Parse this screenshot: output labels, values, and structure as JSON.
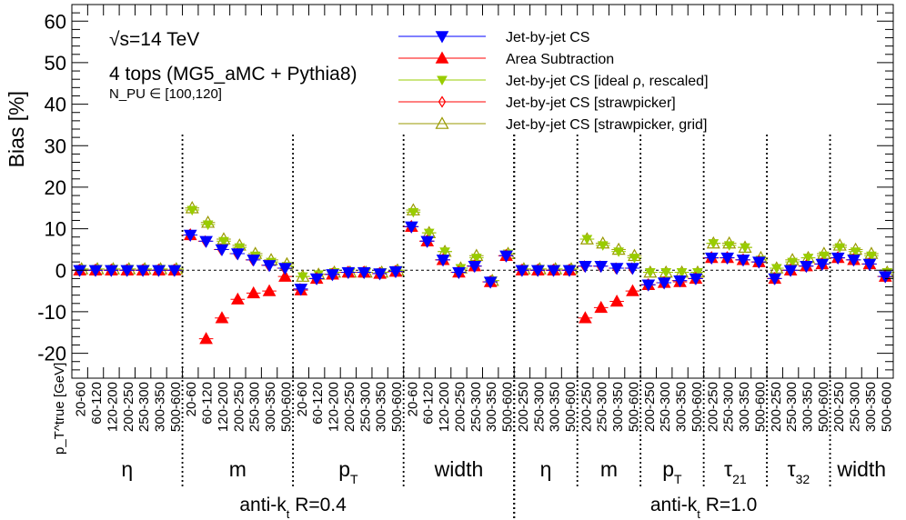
{
  "chart_data": {
    "type": "scatter",
    "ylabel": "Bias [%]",
    "ylim": [
      -26,
      64
    ],
    "yticks": [
      -20,
      -10,
      0,
      10,
      20,
      30,
      40,
      50,
      60
    ],
    "tick_label_prefix": "p_T^true [GeV]",
    "annotations": {
      "energy": "√s=14 TeV",
      "process": "4 tops (MG5_aMC + Pythia8)",
      "pileup": "N_PU ∈ [100,120]"
    },
    "legend_position": "top-center",
    "legend": [
      {
        "key": "cs",
        "label": "Jet-by-jet CS",
        "color": "#0000ff",
        "marker": "triangle-down-filled"
      },
      {
        "key": "area",
        "label": "Area Subtraction",
        "color": "#ff0000",
        "marker": "triangle-up-filled"
      },
      {
        "key": "ideal",
        "label": "Jet-by-jet CS [ideal   ρ, rescaled]",
        "color": "#99cc00",
        "marker": "triangle-down-filled-small"
      },
      {
        "key": "straw",
        "label": "Jet-by-jet CS [strawpicker]",
        "color": "#ff0000",
        "marker": "diamond-open"
      },
      {
        "key": "grid",
        "label": "Jet-by-jet CS [strawpicker, grid]",
        "color": "#999900",
        "marker": "triangle-up-open"
      }
    ],
    "x_bins": [
      "20-60",
      "60-120",
      "120-200",
      "200-250",
      "250-300",
      "300-350",
      "500-600",
      "20-60",
      "60-120",
      "120-200",
      "200-250",
      "250-300",
      "300-350",
      "500-600",
      "20-60",
      "60-120",
      "120-200",
      "200-250",
      "250-300",
      "300-350",
      "500-600",
      "20-60",
      "60-120",
      "120-200",
      "200-250",
      "250-300",
      "300-350",
      "500-600",
      "200-250",
      "250-300",
      "300-350",
      "500-600",
      "200-250",
      "250-300",
      "300-350",
      "500-600",
      "200-250",
      "250-300",
      "300-350",
      "500-600",
      "200-250",
      "250-300",
      "300-350",
      "500-600",
      "200-250",
      "250-300",
      "300-350",
      "500-600",
      "200-250",
      "250-300",
      "300-350",
      "500-600"
    ],
    "groups": [
      {
        "label": "η",
        "start": 0,
        "end": 7
      },
      {
        "label": "m",
        "start": 7,
        "end": 14
      },
      {
        "label": "p_T",
        "start": 14,
        "end": 21
      },
      {
        "label": "width",
        "start": 21,
        "end": 28
      },
      {
        "label": "η",
        "start": 28,
        "end": 32
      },
      {
        "label": "m",
        "start": 32,
        "end": 36
      },
      {
        "label": "p_T",
        "start": 36,
        "end": 40
      },
      {
        "label": "τ_21",
        "start": 40,
        "end": 44
      },
      {
        "label": "τ_32",
        "start": 44,
        "end": 48
      },
      {
        "label": "width",
        "start": 48,
        "end": 52
      }
    ],
    "jet_groups": [
      {
        "label": "anti-k_t R=0.4",
        "start": 0,
        "end": 28
      },
      {
        "label": "anti-k_t R=1.0",
        "start": 28,
        "end": 52
      }
    ],
    "series": [
      {
        "key": "cs",
        "values": [
          0,
          0,
          0,
          0,
          0,
          0,
          0,
          8.5,
          7,
          5,
          4,
          2.5,
          1.2,
          0.5,
          -4.5,
          -2,
          -1,
          -0.5,
          -0.5,
          -0.8,
          -0.3,
          10.5,
          7,
          2.5,
          -0.5,
          1,
          -2.8,
          3.5,
          0,
          0,
          0,
          0,
          1,
          1,
          0.5,
          0.5,
          -3.5,
          -3,
          -2.5,
          -2,
          3,
          3,
          2.5,
          2,
          -2,
          0,
          1,
          1.5,
          3,
          2.5,
          1.5,
          -1.5
        ]
      },
      {
        "key": "area",
        "values": [
          0,
          0,
          0,
          0,
          0,
          0,
          0,
          8.5,
          -16.5,
          -11.5,
          -7,
          -5.5,
          -5,
          -1.5,
          -4.8,
          -2,
          -1,
          -0.5,
          -0.5,
          -0.8,
          -0.3,
          10.5,
          7,
          2.5,
          -0.5,
          1,
          -2.8,
          3.5,
          0,
          0,
          0,
          0,
          -11.5,
          -9,
          -7.5,
          -5,
          -3.5,
          -3,
          -2.8,
          -2,
          3,
          3,
          2.5,
          2,
          -2,
          0,
          1,
          1.5,
          3,
          2.5,
          1.5,
          -1.5
        ]
      },
      {
        "key": "ideal",
        "values": [
          0.3,
          0.3,
          0.3,
          0.3,
          0.3,
          0.3,
          0.3,
          14.5,
          11,
          7,
          5.5,
          3.5,
          2,
          1,
          -1.5,
          -1,
          -0.5,
          -0.5,
          -0.5,
          -0.5,
          0,
          14,
          9,
          4.5,
          0.5,
          3,
          -2.5,
          4,
          0.3,
          0.3,
          0.3,
          0.3,
          7.5,
          6,
          4.5,
          3,
          -0.5,
          -0.5,
          -0.5,
          -0.5,
          6.5,
          6,
          5.5,
          2.5,
          0.5,
          2,
          3,
          3.5,
          5.5,
          4.5,
          3.5,
          -0.5
        ]
      },
      {
        "key": "straw",
        "values": [
          0,
          0,
          0,
          0,
          0,
          0,
          0,
          8.5,
          7,
          5,
          4,
          2.5,
          1.2,
          0.5,
          -4.5,
          -2,
          -1,
          -0.5,
          -0.5,
          -0.8,
          -0.3,
          10.5,
          7,
          2.5,
          -0.5,
          1,
          -2.8,
          3.5,
          0,
          0,
          0,
          0,
          1,
          1,
          0.5,
          0.5,
          -3.5,
          -3,
          -2.5,
          -2,
          3,
          3,
          2.5,
          2,
          -2,
          0,
          1,
          1.5,
          3,
          2.5,
          1.5,
          -1.5
        ]
      },
      {
        "key": "grid",
        "values": [
          0.3,
          0.3,
          0.3,
          0.3,
          0.3,
          0.3,
          0.3,
          15,
          11.5,
          7.5,
          6,
          4,
          2.5,
          1.5,
          -1.5,
          -1,
          -0.5,
          -0.5,
          -0.5,
          -0.5,
          0,
          14.5,
          9,
          4.5,
          0.5,
          3.5,
          -2.5,
          4,
          0.3,
          0.3,
          0.3,
          0.3,
          7.5,
          6.5,
          5,
          3.5,
          -0.5,
          -0.5,
          -0.5,
          -0.5,
          6.5,
          6.5,
          5.5,
          3,
          0.5,
          2.5,
          3,
          4,
          6,
          5,
          4,
          -0.5
        ]
      }
    ]
  }
}
